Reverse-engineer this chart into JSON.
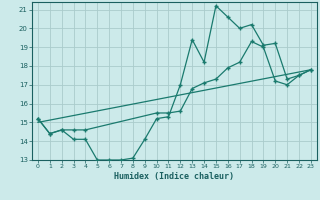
{
  "title": "",
  "xlabel": "Humidex (Indice chaleur)",
  "bg_color": "#cceaea",
  "grid_color": "#aacccc",
  "line_color": "#1a7a6e",
  "xlim": [
    -0.5,
    23.5
  ],
  "ylim": [
    13,
    21.4
  ],
  "xticks": [
    0,
    1,
    2,
    3,
    4,
    5,
    6,
    7,
    8,
    9,
    10,
    11,
    12,
    13,
    14,
    15,
    16,
    17,
    18,
    19,
    20,
    21,
    22,
    23
  ],
  "yticks": [
    13,
    14,
    15,
    16,
    17,
    18,
    19,
    20,
    21
  ],
  "line1_x": [
    0,
    1,
    2,
    3,
    4,
    5,
    6,
    7,
    8,
    9,
    10,
    11,
    12,
    13,
    14,
    15,
    16,
    17,
    18,
    19,
    20,
    21,
    22,
    23
  ],
  "line1_y": [
    15.2,
    14.4,
    14.6,
    14.1,
    14.1,
    13.0,
    13.0,
    13.0,
    13.1,
    14.1,
    15.2,
    15.3,
    17.0,
    19.4,
    18.2,
    21.2,
    20.6,
    20.0,
    20.2,
    19.1,
    19.2,
    17.3,
    17.5,
    17.8
  ],
  "line2_x": [
    0,
    1,
    2,
    3,
    4,
    10,
    11,
    12,
    13,
    14,
    15,
    16,
    17,
    18,
    19,
    20,
    21,
    22,
    23
  ],
  "line2_y": [
    15.2,
    14.4,
    14.6,
    14.6,
    14.6,
    15.5,
    15.5,
    15.6,
    16.8,
    17.1,
    17.3,
    17.9,
    18.2,
    19.3,
    19.0,
    17.2,
    17.0,
    17.5,
    17.8
  ],
  "line3_x": [
    0,
    23
  ],
  "line3_y": [
    15.0,
    17.8
  ]
}
